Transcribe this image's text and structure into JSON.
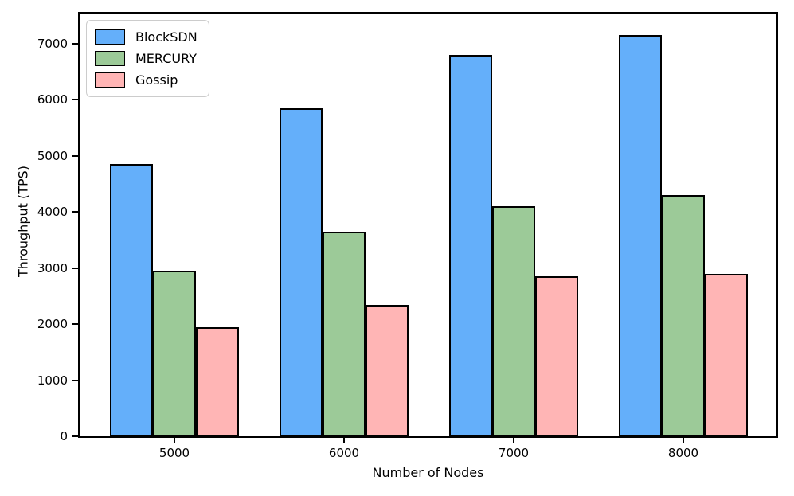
{
  "figure": {
    "background": "#ffffff",
    "spine_color": "#000000"
  },
  "chart_data": {
    "type": "bar",
    "title": "",
    "xlabel": "Number of Nodes",
    "ylabel": "Throughput (TPS)",
    "categories": [
      "5000",
      "6000",
      "7000",
      "8000"
    ],
    "series": [
      {
        "name": "BlockSDN",
        "color": "#64AFFA",
        "values": [
          4850,
          5850,
          6800,
          7150
        ]
      },
      {
        "name": "MERCURY",
        "color": "#9CCA98",
        "values": [
          2950,
          3650,
          4100,
          4300
        ]
      },
      {
        "name": "Gossip",
        "color": "#FFB5B5",
        "values": [
          1950,
          2350,
          2850,
          2900
        ]
      }
    ],
    "bar_edge_color": "#000000",
    "ylim": [
      0,
      7540
    ],
    "yticks": [
      0,
      1000,
      2000,
      3000,
      4000,
      5000,
      6000,
      7000
    ],
    "legend_position": "upper left",
    "grid": false
  }
}
